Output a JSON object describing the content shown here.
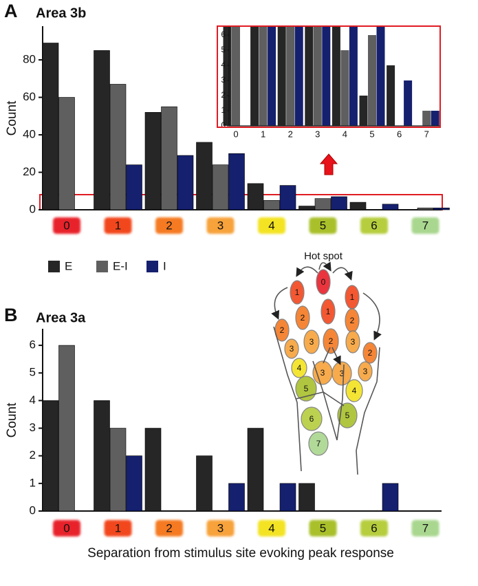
{
  "chart_data": [
    {
      "type": "bar",
      "panel_label": "A",
      "title": "Area 3b",
      "y_label": "Count",
      "categories": [
        "0",
        "1",
        "2",
        "3",
        "4",
        "5",
        "6",
        "7"
      ],
      "category_colors": [
        "#e8202a",
        "#f2461e",
        "#f57a22",
        "#f7a23a",
        "#f3e320",
        "#a9c02c",
        "#b6cd3e",
        "#a9d78f"
      ],
      "series": [
        {
          "name": "E",
          "color": "#262626",
          "values": [
            89,
            85,
            52,
            36,
            14,
            2,
            4,
            0
          ]
        },
        {
          "name": "E-I",
          "color": "#5f5f5f",
          "values": [
            60,
            67,
            55,
            24,
            5,
            6,
            0,
            1
          ]
        },
        {
          "name": "I",
          "color": "#15206e",
          "values": [
            0,
            24,
            29,
            30,
            13,
            7,
            3,
            1
          ]
        }
      ],
      "ylim": [
        0,
        98
      ],
      "yticks": [
        0,
        20,
        40,
        60,
        80
      ],
      "inset": {
        "ylim": [
          0,
          6.5
        ],
        "yticks": [
          0,
          1,
          2,
          3,
          4,
          5,
          6
        ]
      }
    },
    {
      "type": "bar",
      "panel_label": "B",
      "title": "Area 3a",
      "y_label": "Count",
      "x_label": "Separation from stimulus site evoking peak response",
      "categories": [
        "0",
        "1",
        "2",
        "3",
        "4",
        "5",
        "6",
        "7"
      ],
      "category_colors": [
        "#e8202a",
        "#f2461e",
        "#f57a22",
        "#f7a23a",
        "#f3e320",
        "#a9c02c",
        "#b6cd3e",
        "#a9d78f"
      ],
      "series": [
        {
          "color": "#262626",
          "values": [
            4,
            4,
            3,
            2,
            3,
            1,
            0,
            0
          ]
        },
        {
          "color": "#5f5f5f",
          "values": [
            6,
            3,
            0,
            0,
            0,
            0,
            0,
            0
          ]
        },
        {
          "color": "#15206e",
          "values": [
            0,
            2,
            0,
            1,
            1,
            0,
            1,
            0
          ]
        }
      ],
      "ylim": [
        0,
        6.6
      ],
      "yticks": [
        0,
        1,
        2,
        3,
        4,
        5,
        6
      ]
    }
  ],
  "hand": {
    "label": "Hot spot",
    "regions": [
      "0",
      "1",
      "2",
      "1",
      "2",
      "3",
      "1",
      "2",
      "3",
      "2",
      "3",
      "4",
      "2",
      "3",
      "4",
      "3",
      "3",
      "5",
      "5",
      "6",
      "7"
    ]
  }
}
